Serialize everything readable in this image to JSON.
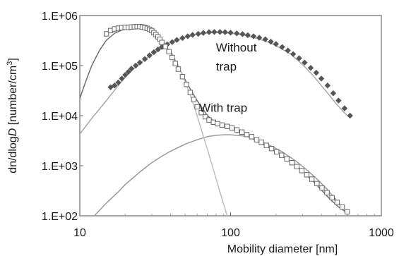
{
  "chart_data": {
    "type": "scatter",
    "x_scale": "log",
    "y_scale": "log",
    "xlim": [
      10,
      1000
    ],
    "ylim": [
      100,
      1000000
    ],
    "grid": false,
    "xlabel": "Mobility diameter [nm]",
    "ylabel_parts": {
      "a": "dn/dlog",
      "b": "D",
      "c": " [number/cm",
      "d": "3",
      "e": "]"
    },
    "x_ticks": [
      {
        "value": 10,
        "label": "10"
      },
      {
        "value": 100,
        "label": "100"
      },
      {
        "value": 1000,
        "label": "1000"
      }
    ],
    "y_ticks": [
      {
        "value": 100,
        "label": "1.E+02"
      },
      {
        "value": 1000,
        "label": "1.E+03"
      },
      {
        "value": 10000,
        "label": "1.E+04"
      },
      {
        "value": 100000,
        "label": "1.E+05"
      },
      {
        "value": 1000000,
        "label": "1.E+06"
      }
    ],
    "annotations": [
      {
        "lines": [
          "Without",
          "trap"
        ],
        "x": 80,
        "y": 190000
      },
      {
        "lines": [
          "With trap"
        ],
        "x": 62,
        "y": 12000
      }
    ],
    "series": [
      {
        "marker": "filled-diamond",
        "color": "#555555",
        "points": [
          [
            16,
            37000
          ],
          [
            17,
            40000
          ],
          [
            18,
            46000
          ],
          [
            19,
            55000
          ],
          [
            20,
            65000
          ],
          [
            21,
            75000
          ],
          [
            22,
            87000
          ],
          [
            23.5,
            100000
          ],
          [
            25,
            115000
          ],
          [
            27,
            135000
          ],
          [
            29,
            160000
          ],
          [
            31,
            185000
          ],
          [
            33,
            210000
          ],
          [
            35,
            235000
          ],
          [
            38,
            265000
          ],
          [
            41,
            295000
          ],
          [
            44,
            325000
          ],
          [
            48,
            355000
          ],
          [
            52,
            385000
          ],
          [
            56,
            410000
          ],
          [
            61,
            430000
          ],
          [
            66,
            450000
          ],
          [
            72,
            465000
          ],
          [
            78,
            470000
          ],
          [
            85,
            470000
          ],
          [
            92,
            465000
          ],
          [
            100,
            455000
          ],
          [
            110,
            440000
          ],
          [
            120,
            425000
          ],
          [
            130,
            405000
          ],
          [
            142,
            385000
          ],
          [
            155,
            360000
          ],
          [
            170,
            335000
          ],
          [
            185,
            300000
          ],
          [
            200,
            270000
          ],
          [
            220,
            235000
          ],
          [
            240,
            200000
          ],
          [
            260,
            170000
          ],
          [
            285,
            140000
          ],
          [
            310,
            115000
          ],
          [
            340,
            90000
          ],
          [
            370,
            72000
          ],
          [
            400,
            55000
          ],
          [
            440,
            40000
          ],
          [
            480,
            28000
          ],
          [
            520,
            20000
          ],
          [
            570,
            14000
          ],
          [
            620,
            10000
          ]
        ]
      },
      {
        "marker": "open-square",
        "color": "#666666",
        "points": [
          [
            15,
            430000
          ],
          [
            16,
            500000
          ],
          [
            17,
            540000
          ],
          [
            18,
            560000
          ],
          [
            19,
            570000
          ],
          [
            20,
            580000
          ],
          [
            21,
            580000
          ],
          [
            22,
            590000
          ],
          [
            23,
            595000
          ],
          [
            24,
            600000
          ],
          [
            25,
            600000
          ],
          [
            26,
            590000
          ],
          [
            27,
            575000
          ],
          [
            28,
            555000
          ],
          [
            29,
            530000
          ],
          [
            30,
            500000
          ],
          [
            31,
            455000
          ],
          [
            32,
            415000
          ],
          [
            33,
            375000
          ],
          [
            34,
            335000
          ],
          [
            35,
            290000
          ],
          [
            37,
            240000
          ],
          [
            39,
            190000
          ],
          [
            41,
            145000
          ],
          [
            43,
            110000
          ],
          [
            45,
            85000
          ],
          [
            48,
            60000
          ],
          [
            51,
            42000
          ],
          [
            54,
            29000
          ],
          [
            57,
            21000
          ],
          [
            60,
            15000
          ],
          [
            64,
            11500
          ],
          [
            68,
            9500
          ],
          [
            72,
            8200
          ],
          [
            77,
            7400
          ],
          [
            82,
            6900
          ],
          [
            88,
            6500
          ],
          [
            95,
            6100
          ],
          [
            102,
            5700
          ],
          [
            110,
            5200
          ],
          [
            119,
            4700
          ],
          [
            128,
            4200
          ],
          [
            138,
            3800
          ],
          [
            149,
            3300
          ],
          [
            160,
            2950
          ],
          [
            173,
            2550
          ],
          [
            187,
            2200
          ],
          [
            202,
            1900
          ],
          [
            218,
            1620
          ],
          [
            236,
            1370
          ],
          [
            255,
            1150
          ],
          [
            275,
            960
          ],
          [
            297,
            800
          ],
          [
            320,
            660
          ],
          [
            346,
            540
          ],
          [
            374,
            440
          ],
          [
            404,
            360
          ],
          [
            436,
            290
          ],
          [
            471,
            230
          ],
          [
            509,
            185
          ],
          [
            550,
            150
          ],
          [
            594,
            120
          ]
        ]
      }
    ],
    "fit_curves": [
      {
        "color": "#6e6e6e",
        "points": [
          [
            10,
            22000
          ],
          [
            11,
            50000
          ],
          [
            12,
            100000
          ],
          [
            13.5,
            200000
          ],
          [
            15,
            320000
          ],
          [
            17,
            440000
          ],
          [
            20,
            550000
          ],
          [
            23,
            600000
          ],
          [
            25,
            610000
          ],
          [
            28,
            560000
          ],
          [
            31,
            470000
          ],
          [
            35,
            320000
          ],
          [
            40,
            180000
          ],
          [
            45,
            95000
          ],
          [
            50,
            52000
          ],
          [
            55,
            31000
          ],
          [
            60,
            20000
          ],
          [
            65,
            14000
          ],
          [
            70,
            10200
          ],
          [
            78,
            7500
          ],
          [
            85,
            6500
          ],
          [
            95,
            5800
          ],
          [
            110,
            4900
          ],
          [
            130,
            3900
          ],
          [
            160,
            2800
          ],
          [
            200,
            1900
          ],
          [
            250,
            1200
          ],
          [
            300,
            780
          ],
          [
            350,
            500
          ],
          [
            400,
            330
          ],
          [
            460,
            210
          ],
          [
            520,
            150
          ],
          [
            580,
            120
          ]
        ]
      },
      {
        "color": "#a8a8a8",
        "points": [
          [
            10,
            4300
          ],
          [
            12,
            8800
          ],
          [
            15,
            20000
          ],
          [
            18,
            40000
          ],
          [
            21,
            70000
          ],
          [
            25,
            110000
          ],
          [
            30,
            170000
          ],
          [
            35,
            230000
          ],
          [
            40,
            290000
          ],
          [
            50,
            370000
          ],
          [
            60,
            420000
          ],
          [
            70,
            448000
          ],
          [
            80,
            455000
          ],
          [
            90,
            450000
          ],
          [
            100,
            440000
          ],
          [
            120,
            410000
          ],
          [
            150,
            350000
          ],
          [
            180,
            290000
          ],
          [
            200,
            250000
          ],
          [
            250,
            170000
          ],
          [
            300,
            105000
          ],
          [
            350,
            65000
          ],
          [
            400,
            40000
          ],
          [
            450,
            26000
          ],
          [
            500,
            17500
          ],
          [
            560,
            12000
          ],
          [
            620,
            9000
          ]
        ]
      },
      {
        "color": "#9a9a9a",
        "points": [
          [
            12.5,
            100
          ],
          [
            15,
            180
          ],
          [
            18,
            300
          ],
          [
            20,
            420
          ],
          [
            25,
            750
          ],
          [
            30,
            1150
          ],
          [
            35,
            1550
          ],
          [
            40,
            1950
          ],
          [
            50,
            2700
          ],
          [
            60,
            3300
          ],
          [
            70,
            3800
          ],
          [
            80,
            4050
          ],
          [
            90,
            4150
          ],
          [
            100,
            4150
          ],
          [
            115,
            4000
          ],
          [
            130,
            3800
          ],
          [
            150,
            3300
          ],
          [
            180,
            2600
          ],
          [
            220,
            1900
          ],
          [
            270,
            1250
          ],
          [
            320,
            830
          ],
          [
            380,
            520
          ],
          [
            440,
            330
          ],
          [
            500,
            210
          ],
          [
            560,
            130
          ]
        ]
      },
      {
        "color": "#bdbdbd",
        "points": [
          [
            40,
            200000
          ],
          [
            45,
            100000
          ],
          [
            50,
            47000
          ],
          [
            55,
            22000
          ],
          [
            60,
            10000
          ],
          [
            65,
            4500
          ],
          [
            70,
            2200
          ],
          [
            75,
            1100
          ],
          [
            80,
            560
          ],
          [
            85,
            300
          ],
          [
            90,
            170
          ],
          [
            95,
            100
          ]
        ]
      }
    ]
  }
}
